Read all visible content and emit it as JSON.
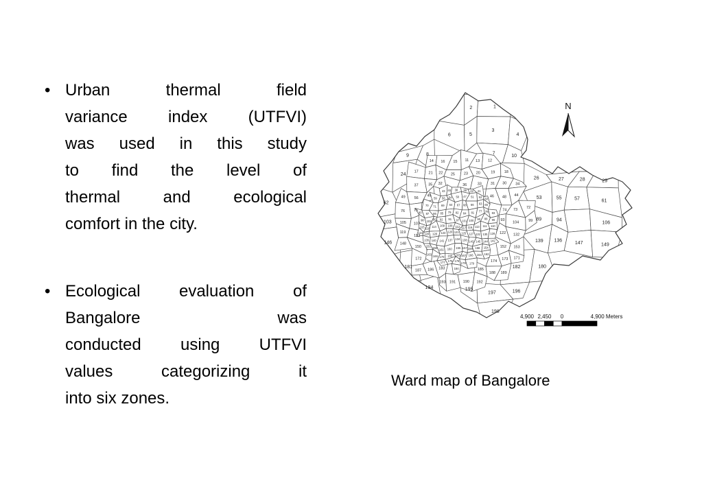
{
  "slide": {
    "background_color": "#ffffff",
    "text_color": "#000000",
    "bullet_glyph": "•",
    "bullets": [
      {
        "text": "Urban thermal field variance index (UTFVI) was used in this study to find the level of thermal and ecological comfort in the city.",
        "lines": [
          "Urban thermal field",
          "variance index (UTFVI)",
          "was used in this study",
          "to find the level of",
          "thermal and ecological",
          "comfort in the city."
        ]
      },
      {
        "text": "Ecological evaluation of Bangalore was conducted using UTFVI values categorizing it into six zones.",
        "lines": [
          "Ecological evaluation of",
          "Bangalore was",
          "conducted using UTFVI",
          "values categorizing it",
          "into six zones."
        ]
      }
    ]
  },
  "figure": {
    "caption": "Ward map of Bangalore",
    "map": {
      "type": "ward-boundary-outline-map",
      "region": "Bangalore",
      "north_label": "N",
      "line_color": "#3a3a3a",
      "label_color": "#1f1f1f",
      "scale_bar": {
        "labels": [
          "4,900",
          "2,450",
          "0",
          "4,900 Meters"
        ]
      },
      "ward_numbers": [
        1,
        2,
        3,
        4,
        5,
        6,
        7,
        8,
        9,
        10,
        11,
        12,
        13,
        14,
        15,
        16,
        17,
        18,
        19,
        20,
        21,
        22,
        23,
        24,
        25,
        26,
        27,
        28,
        29,
        30,
        31,
        32,
        33,
        34,
        35,
        36,
        37,
        38,
        39,
        40,
        41,
        42,
        43,
        44,
        45,
        46,
        47,
        48,
        49,
        50,
        51,
        52,
        53,
        54,
        55,
        56,
        57,
        58,
        59,
        60,
        61,
        62,
        63,
        64,
        65,
        66,
        67,
        68,
        69,
        70,
        71,
        72,
        73,
        74,
        75,
        76,
        77,
        78,
        79,
        80,
        81,
        82,
        83,
        84,
        85,
        86,
        87,
        88,
        89,
        90,
        91,
        92,
        93,
        94,
        95,
        96,
        97,
        98,
        99,
        100,
        101,
        102,
        103,
        104,
        105,
        106,
        107,
        108,
        109,
        110,
        111,
        112,
        113,
        114,
        115,
        116,
        117,
        118,
        119,
        120,
        121,
        122,
        123,
        124,
        125,
        126,
        127,
        128,
        129,
        130,
        131,
        132,
        133,
        134,
        135,
        136,
        137,
        138,
        139,
        140,
        141,
        142,
        143,
        144,
        145,
        146,
        147,
        148,
        149,
        150,
        151,
        152,
        153,
        154,
        155,
        156,
        157,
        158,
        159,
        160,
        161,
        162,
        163,
        164,
        165,
        166,
        167,
        168,
        169,
        170,
        171,
        172,
        173,
        174,
        175,
        176,
        177,
        178,
        179,
        180,
        181,
        182,
        183,
        184,
        185,
        186,
        187,
        188,
        189,
        190,
        191,
        192,
        193,
        194,
        195,
        196,
        197,
        198
      ]
    }
  }
}
